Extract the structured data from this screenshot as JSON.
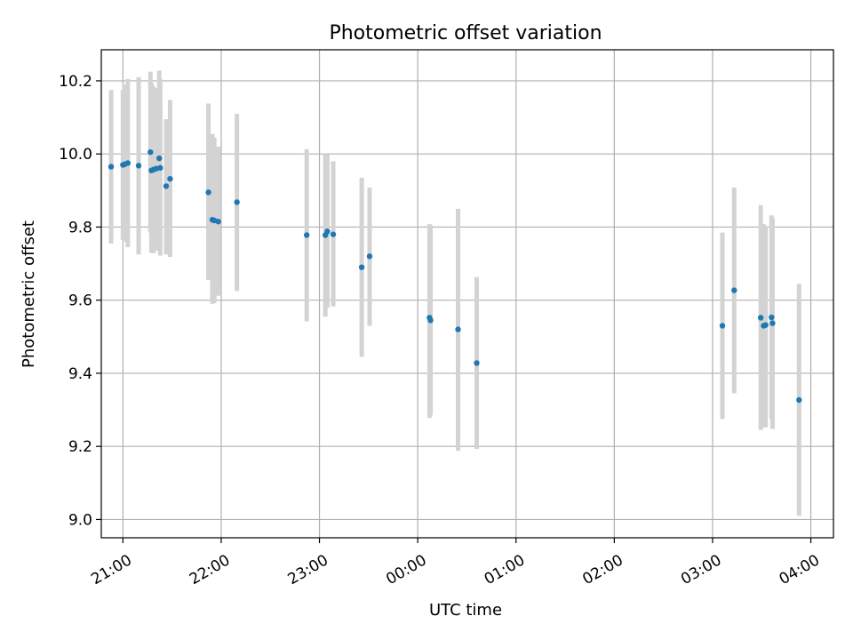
{
  "chart_data": {
    "type": "scatter",
    "title": "Photometric offset variation",
    "xlabel": "UTC time",
    "ylabel": "Photometric offset",
    "x_unit": "UTC time (hours, continuing past midnight)",
    "xlim": [
      20.78,
      28.23
    ],
    "ylim": [
      8.95,
      10.285
    ],
    "grid": true,
    "legend": "none",
    "colors": {
      "points": "#1f77b4",
      "error_bars": "#d3d3d3",
      "grid": "#b0b0b0"
    },
    "x_ticks": [
      {
        "value": 21,
        "label": "21:00"
      },
      {
        "value": 22,
        "label": "22:00"
      },
      {
        "value": 23,
        "label": "23:00"
      },
      {
        "value": 24,
        "label": "00:00"
      },
      {
        "value": 25,
        "label": "01:00"
      },
      {
        "value": 26,
        "label": "02:00"
      },
      {
        "value": 27,
        "label": "03:00"
      },
      {
        "value": 28,
        "label": "04:00"
      }
    ],
    "y_ticks": [
      {
        "value": 9.0,
        "label": "9.0"
      },
      {
        "value": 9.2,
        "label": "9.2"
      },
      {
        "value": 9.4,
        "label": "9.4"
      },
      {
        "value": 9.6,
        "label": "9.6"
      },
      {
        "value": 9.8,
        "label": "9.8"
      },
      {
        "value": 10.0,
        "label": "10.0"
      },
      {
        "value": 10.2,
        "label": "10.2"
      }
    ],
    "points": [
      {
        "x": 20.88,
        "y": 9.965,
        "low": 9.755,
        "high": 10.175
      },
      {
        "x": 21.0,
        "y": 9.97,
        "low": 9.765,
        "high": 10.175
      },
      {
        "x": 21.02,
        "y": 9.972,
        "low": 9.76,
        "high": 10.19
      },
      {
        "x": 21.05,
        "y": 9.975,
        "low": 9.745,
        "high": 10.205
      },
      {
        "x": 21.16,
        "y": 9.968,
        "low": 9.725,
        "high": 10.21
      },
      {
        "x": 21.28,
        "y": 10.005,
        "low": 9.785,
        "high": 10.225
      },
      {
        "x": 21.29,
        "y": 9.955,
        "low": 9.73,
        "high": 10.195
      },
      {
        "x": 21.31,
        "y": 9.957,
        "low": 9.728,
        "high": 10.185
      },
      {
        "x": 21.34,
        "y": 9.96,
        "low": 9.735,
        "high": 10.18
      },
      {
        "x": 21.37,
        "y": 9.988,
        "low": 9.748,
        "high": 10.228
      },
      {
        "x": 21.38,
        "y": 9.962,
        "low": 9.722,
        "high": 10.205
      },
      {
        "x": 21.44,
        "y": 9.912,
        "low": 9.725,
        "high": 10.095
      },
      {
        "x": 21.48,
        "y": 9.932,
        "low": 9.718,
        "high": 10.148
      },
      {
        "x": 21.87,
        "y": 9.895,
        "low": 9.655,
        "high": 10.138
      },
      {
        "x": 21.91,
        "y": 9.82,
        "low": 9.59,
        "high": 10.055
      },
      {
        "x": 21.93,
        "y": 9.818,
        "low": 9.592,
        "high": 10.045
      },
      {
        "x": 21.97,
        "y": 9.815,
        "low": 9.612,
        "high": 10.02
      },
      {
        "x": 22.16,
        "y": 9.868,
        "low": 9.625,
        "high": 10.11
      },
      {
        "x": 22.87,
        "y": 9.778,
        "low": 9.542,
        "high": 10.013
      },
      {
        "x": 23.06,
        "y": 9.778,
        "low": 9.555,
        "high": 10.0
      },
      {
        "x": 23.08,
        "y": 9.788,
        "low": 9.58,
        "high": 9.998
      },
      {
        "x": 23.14,
        "y": 9.78,
        "low": 9.583,
        "high": 9.98
      },
      {
        "x": 23.43,
        "y": 9.69,
        "low": 9.445,
        "high": 9.935
      },
      {
        "x": 23.51,
        "y": 9.72,
        "low": 9.53,
        "high": 9.908
      },
      {
        "x": 24.12,
        "y": 9.552,
        "low": 9.278,
        "high": 9.808
      },
      {
        "x": 24.13,
        "y": 9.545,
        "low": 9.285,
        "high": 9.805
      },
      {
        "x": 24.41,
        "y": 9.52,
        "low": 9.188,
        "high": 9.85
      },
      {
        "x": 24.6,
        "y": 9.428,
        "low": 9.193,
        "high": 9.663
      },
      {
        "x": 27.1,
        "y": 9.53,
        "low": 9.275,
        "high": 9.785
      },
      {
        "x": 27.22,
        "y": 9.627,
        "low": 9.345,
        "high": 9.908
      },
      {
        "x": 27.49,
        "y": 9.552,
        "low": 9.245,
        "high": 9.86
      },
      {
        "x": 27.52,
        "y": 9.53,
        "low": 9.252,
        "high": 9.808
      },
      {
        "x": 27.54,
        "y": 9.532,
        "low": 9.252,
        "high": 9.8
      },
      {
        "x": 27.6,
        "y": 9.553,
        "low": 9.275,
        "high": 9.832
      },
      {
        "x": 27.61,
        "y": 9.537,
        "low": 9.248,
        "high": 9.825
      },
      {
        "x": 27.88,
        "y": 9.327,
        "low": 9.01,
        "high": 9.645
      }
    ]
  }
}
